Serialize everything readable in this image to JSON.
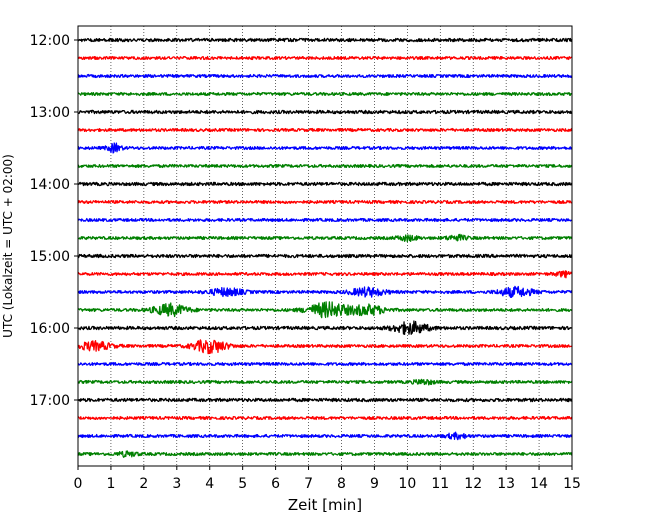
{
  "chart_data": {
    "type": "line",
    "title": "",
    "xlabel": "Zeit  [min]",
    "ylabel": "UTC (Lokalzeit = UTC + 02:00)",
    "xlim": [
      0,
      15
    ],
    "x_ticks": [
      0,
      1,
      2,
      3,
      4,
      5,
      6,
      7,
      8,
      9,
      10,
      11,
      12,
      13,
      14,
      15
    ],
    "y_tick_labels": [
      "12:00",
      "13:00",
      "14:00",
      "15:00",
      "16:00",
      "17:00"
    ],
    "y_tick_rows": [
      0,
      4,
      8,
      12,
      16,
      20
    ],
    "grid": "vertical dotted at each minute",
    "trace_interval_minutes": 15,
    "start_time": "12:00",
    "color_cycle": [
      "#000000",
      "#ff0000",
      "#0000ff",
      "#008000"
    ],
    "rows": [
      {
        "time": "12:00",
        "amp": 1.0,
        "events": []
      },
      {
        "time": "12:15",
        "amp": 0.9,
        "events": []
      },
      {
        "time": "12:30",
        "amp": 0.9,
        "events": []
      },
      {
        "time": "12:45",
        "amp": 0.9,
        "events": []
      },
      {
        "time": "13:00",
        "amp": 1.0,
        "events": []
      },
      {
        "time": "13:15",
        "amp": 0.9,
        "events": []
      },
      {
        "time": "13:30",
        "amp": 0.9,
        "events": [
          {
            "t": 1.1,
            "a": 2.5,
            "w": 0.2
          }
        ]
      },
      {
        "time": "13:45",
        "amp": 0.9,
        "events": []
      },
      {
        "time": "14:00",
        "amp": 1.0,
        "events": []
      },
      {
        "time": "14:15",
        "amp": 0.9,
        "events": []
      },
      {
        "time": "14:30",
        "amp": 0.9,
        "events": []
      },
      {
        "time": "14:45",
        "amp": 0.9,
        "events": [
          {
            "t": 10.0,
            "a": 1.5,
            "w": 0.3
          },
          {
            "t": 11.5,
            "a": 1.5,
            "w": 0.3
          }
        ]
      },
      {
        "time": "15:00",
        "amp": 1.0,
        "events": []
      },
      {
        "time": "15:15",
        "amp": 0.9,
        "events": [
          {
            "t": 14.8,
            "a": 1.5,
            "w": 0.3
          }
        ]
      },
      {
        "time": "15:30",
        "amp": 0.9,
        "events": [
          {
            "t": 4.5,
            "a": 2.2,
            "w": 0.5
          },
          {
            "t": 8.8,
            "a": 2.5,
            "w": 0.5
          },
          {
            "t": 13.3,
            "a": 2.8,
            "w": 0.5
          }
        ]
      },
      {
        "time": "15:45",
        "amp": 0.9,
        "events": [
          {
            "t": 2.8,
            "a": 3.5,
            "w": 0.5
          },
          {
            "t": 7.6,
            "a": 4.5,
            "w": 0.6
          },
          {
            "t": 8.8,
            "a": 3.0,
            "w": 0.5
          }
        ]
      },
      {
        "time": "16:00",
        "amp": 1.0,
        "events": [
          {
            "t": 10.1,
            "a": 3.5,
            "w": 0.5
          }
        ]
      },
      {
        "time": "16:15",
        "amp": 0.9,
        "events": [
          {
            "t": 0.5,
            "a": 2.5,
            "w": 0.5
          },
          {
            "t": 4.0,
            "a": 4.0,
            "w": 0.5
          }
        ]
      },
      {
        "time": "16:30",
        "amp": 0.9,
        "events": []
      },
      {
        "time": "16:45",
        "amp": 0.9,
        "events": [
          {
            "t": 10.5,
            "a": 1.3,
            "w": 0.3
          }
        ]
      },
      {
        "time": "17:00",
        "amp": 1.0,
        "events": []
      },
      {
        "time": "17:15",
        "amp": 0.9,
        "events": []
      },
      {
        "time": "17:30",
        "amp": 0.9,
        "events": [
          {
            "t": 11.5,
            "a": 1.5,
            "w": 0.3
          }
        ]
      },
      {
        "time": "17:45",
        "amp": 0.9,
        "events": [
          {
            "t": 1.5,
            "a": 1.3,
            "w": 0.3
          }
        ]
      }
    ]
  }
}
